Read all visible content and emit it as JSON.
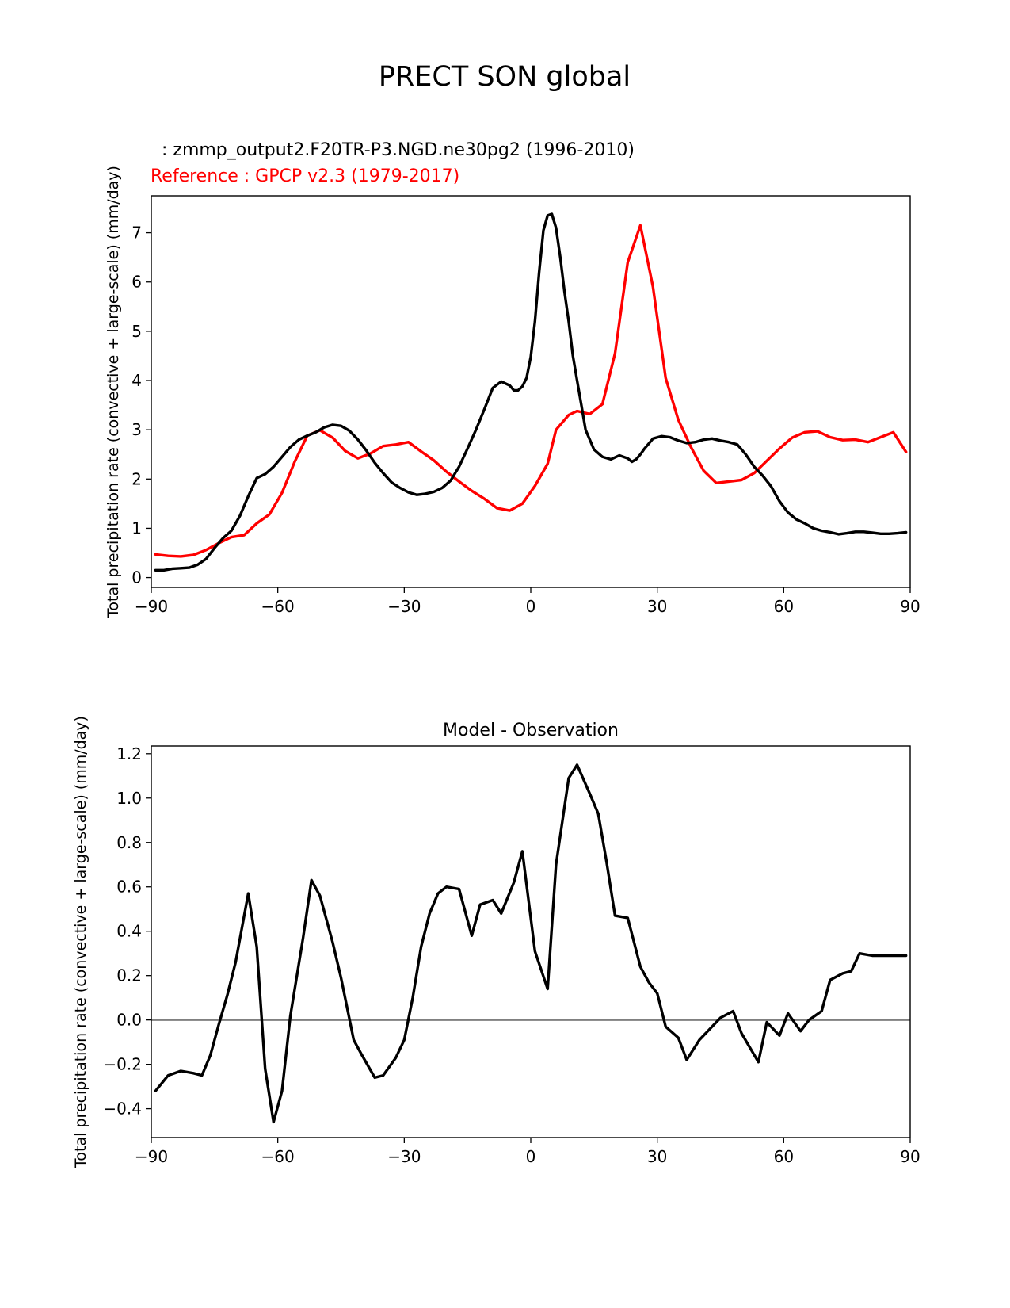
{
  "figure_title": "PRECT SON global",
  "chart_data": [
    {
      "type": "line",
      "title": "",
      "test_label": "  : zmmp_output2.F20TR-P3.NGD.ne30pg2 (1996-2010)",
      "ref_label": "Reference : GPCP v2.3 (1979-2017)",
      "xlabel": "",
      "ylabel": "Total precipitation rate (convective + large-scale) (mm/day)",
      "xlim": [
        -90,
        90
      ],
      "ylim": [
        -0.2,
        7.75
      ],
      "xticks": [
        "−90",
        "−60",
        "−30",
        "0",
        "30",
        "60",
        "90"
      ],
      "xtick_values": [
        -90,
        -60,
        -30,
        0,
        30,
        60,
        90
      ],
      "yticks": [
        "0",
        "1",
        "2",
        "3",
        "4",
        "5",
        "6",
        "7"
      ],
      "ytick_values": [
        0,
        1,
        2,
        3,
        4,
        5,
        6,
        7
      ],
      "series": [
        {
          "name": "Reference : GPCP v2.3 (1979-2017)",
          "color": "#ff0000",
          "x": [
            -89,
            -86,
            -83,
            -80,
            -77,
            -74,
            -71,
            -68,
            -65,
            -62,
            -59,
            -56,
            -53,
            -50,
            -47,
            -44,
            -41,
            -38,
            -35,
            -32,
            -29,
            -26,
            -23,
            -20,
            -17,
            -14,
            -11,
            -8,
            -5,
            -2,
            1,
            4,
            6,
            9,
            11,
            14,
            17,
            20,
            23,
            26,
            29,
            32,
            35,
            38,
            41,
            44,
            47,
            50,
            53,
            56,
            59,
            62,
            65,
            68,
            71,
            74,
            77,
            80,
            83,
            86,
            89
          ],
          "values": [
            0.47,
            0.44,
            0.43,
            0.46,
            0.56,
            0.7,
            0.82,
            0.86,
            1.1,
            1.28,
            1.72,
            2.35,
            2.88,
            2.99,
            2.84,
            2.57,
            2.42,
            2.52,
            2.67,
            2.7,
            2.75,
            2.56,
            2.38,
            2.15,
            1.95,
            1.76,
            1.6,
            1.41,
            1.36,
            1.5,
            1.86,
            2.31,
            3.0,
            3.3,
            3.38,
            3.32,
            3.52,
            4.55,
            6.4,
            7.15,
            5.9,
            4.05,
            3.2,
            2.65,
            2.17,
            1.92,
            1.95,
            1.98,
            2.12,
            2.37,
            2.62,
            2.84,
            2.95,
            2.97,
            2.85,
            2.79,
            2.8,
            2.75,
            2.85,
            2.95,
            2.55
          ]
        },
        {
          "name": "zmmp_output2.F20TR-P3.NGD.ne30pg2 (1996-2010)",
          "color": "#000000",
          "x": [
            -89,
            -87,
            -85,
            -83,
            -81,
            -79,
            -77,
            -75,
            -73,
            -71,
            -69,
            -67,
            -65,
            -63,
            -61,
            -59,
            -57,
            -55,
            -53,
            -51,
            -49,
            -47,
            -45,
            -43,
            -41,
            -39,
            -37,
            -35,
            -33,
            -31,
            -29,
            -27,
            -25,
            -23,
            -21,
            -19,
            -17,
            -15,
            -13,
            -11,
            -9,
            -7,
            -5,
            -4,
            -3,
            -2,
            -1,
            0,
            1,
            2,
            3,
            4,
            5,
            6,
            7,
            8,
            9,
            10,
            11,
            12,
            13,
            15,
            17,
            19,
            21,
            23,
            24,
            25,
            26,
            27,
            28,
            29,
            31,
            33,
            35,
            37,
            39,
            41,
            43,
            45,
            47,
            49,
            51,
            53,
            55,
            57,
            59,
            61,
            63,
            65,
            67,
            69,
            71,
            73,
            75,
            77,
            79,
            81,
            83,
            85,
            87,
            89
          ],
          "values": [
            0.15,
            0.15,
            0.18,
            0.19,
            0.2,
            0.26,
            0.38,
            0.6,
            0.8,
            0.95,
            1.25,
            1.65,
            2.02,
            2.1,
            2.25,
            2.45,
            2.65,
            2.8,
            2.88,
            2.95,
            3.05,
            3.1,
            3.08,
            2.98,
            2.8,
            2.58,
            2.33,
            2.12,
            1.93,
            1.82,
            1.73,
            1.68,
            1.7,
            1.74,
            1.82,
            1.97,
            2.25,
            2.62,
            3.0,
            3.42,
            3.85,
            3.98,
            3.9,
            3.8,
            3.8,
            3.88,
            4.05,
            4.48,
            5.2,
            6.2,
            7.05,
            7.35,
            7.38,
            7.1,
            6.5,
            5.8,
            5.2,
            4.5,
            4.0,
            3.5,
            3.0,
            2.6,
            2.45,
            2.4,
            2.48,
            2.42,
            2.35,
            2.4,
            2.5,
            2.62,
            2.72,
            2.82,
            2.87,
            2.85,
            2.78,
            2.73,
            2.75,
            2.8,
            2.82,
            2.78,
            2.75,
            2.7,
            2.5,
            2.25,
            2.07,
            1.85,
            1.55,
            1.32,
            1.18,
            1.1,
            1.0,
            0.95,
            0.92,
            0.88,
            0.9,
            0.93,
            0.93,
            0.91,
            0.89,
            0.89,
            0.9,
            0.92
          ]
        }
      ]
    },
    {
      "type": "line",
      "title": "Model - Observation",
      "xlabel": "",
      "ylabel": "Total precipitation rate (convective + large-scale) (mm/day)",
      "xlim": [
        -90,
        90
      ],
      "ylim": [
        -0.53,
        1.235
      ],
      "xticks": [
        "−90",
        "−60",
        "−30",
        "0",
        "30",
        "60",
        "90"
      ],
      "xtick_values": [
        -90,
        -60,
        -30,
        0,
        30,
        60,
        90
      ],
      "yticks": [
        "−0.4",
        "−0.2",
        "0.0",
        "0.2",
        "0.4",
        "0.6",
        "0.8",
        "1.0",
        "1.2"
      ],
      "ytick_values": [
        -0.4,
        -0.2,
        0.0,
        0.2,
        0.4,
        0.6,
        0.8,
        1.0,
        1.2
      ],
      "zero_line_color": "#808080",
      "series": [
        {
          "name": "Model - Observation",
          "color": "#000000",
          "x": [
            -89,
            -86,
            -83,
            -80,
            -78,
            -76,
            -74,
            -72,
            -70,
            -67,
            -65,
            -63,
            -61,
            -59,
            -57,
            -54,
            -52,
            -50,
            -47,
            -45,
            -42,
            -40,
            -37,
            -35,
            -32,
            -30,
            -28,
            -26,
            -24,
            -22,
            -20,
            -17,
            -14,
            -12,
            -9,
            -7,
            -4,
            -2,
            1,
            4,
            6,
            9,
            11,
            14,
            16,
            18,
            20,
            23,
            26,
            28,
            30,
            32,
            35,
            37,
            40,
            43,
            45,
            48,
            50,
            54,
            56,
            59,
            61,
            64,
            66,
            69,
            71,
            74,
            76,
            78,
            81,
            83,
            86,
            89
          ],
          "values": [
            -0.32,
            -0.25,
            -0.23,
            -0.24,
            -0.25,
            -0.16,
            -0.02,
            0.11,
            0.26,
            0.57,
            0.33,
            -0.22,
            -0.46,
            -0.32,
            0.02,
            0.37,
            0.63,
            0.56,
            0.35,
            0.19,
            -0.09,
            -0.16,
            -0.26,
            -0.25,
            -0.17,
            -0.09,
            0.1,
            0.33,
            0.48,
            0.57,
            0.6,
            0.59,
            0.38,
            0.52,
            0.54,
            0.48,
            0.62,
            0.76,
            0.31,
            0.14,
            0.7,
            1.09,
            1.15,
            1.02,
            0.93,
            0.71,
            0.47,
            0.46,
            0.24,
            0.17,
            0.12,
            -0.03,
            -0.08,
            -0.18,
            -0.09,
            -0.03,
            0.01,
            0.04,
            -0.06,
            -0.19,
            -0.01,
            -0.07,
            0.03,
            -0.05,
            0.0,
            0.04,
            0.18,
            0.21,
            0.22,
            0.3,
            0.29,
            0.29,
            0.29,
            0.29
          ]
        }
      ]
    }
  ]
}
